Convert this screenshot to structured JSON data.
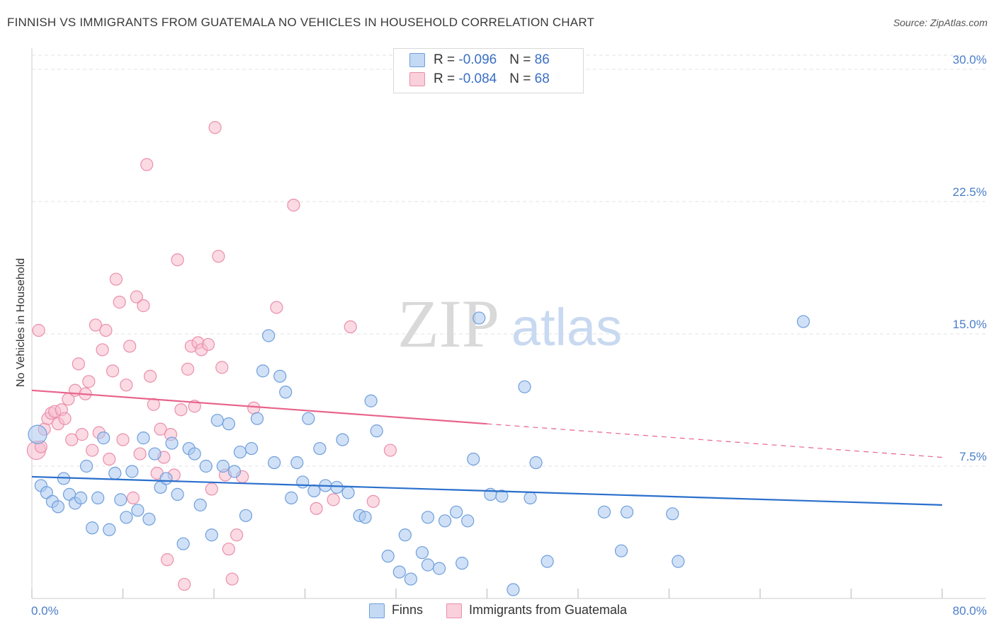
{
  "title": "FINNISH VS IMMIGRANTS FROM GUATEMALA NO VEHICLES IN HOUSEHOLD CORRELATION CHART",
  "source": "Source: ZipAtlas.com",
  "watermark": {
    "zip": "ZIP",
    "atlas": "atlas"
  },
  "colors": {
    "blue_fill": "#a9c8f0",
    "blue_stroke": "#6f9edb",
    "blue_line": "#2a6fcc",
    "pink_fill": "#f7bccd",
    "pink_stroke": "#ea8fab",
    "pink_line": "#e8638b",
    "grid": "#e3e3e3",
    "tick_text": "#4a7ec9"
  },
  "legend": {
    "rows": [
      {
        "r_label": "R = ",
        "r_value": "-0.096",
        "n_label": "N = ",
        "n_value": "86"
      },
      {
        "r_label": "R = ",
        "r_value": "-0.084",
        "n_label": "N = ",
        "n_value": "68"
      }
    ]
  },
  "chart_data": {
    "type": "scatter",
    "xlabel": "",
    "ylabel": "No Vehicles in Household",
    "xlim": [
      0,
      80
    ],
    "ylim": [
      0,
      30
    ],
    "x_tick_labels": [
      "0.0%",
      "80.0%"
    ],
    "y_ticks": [
      7.5,
      15.0,
      22.5,
      30.0
    ],
    "y_tick_labels": [
      "7.5%",
      "15.0%",
      "22.5%",
      "30.0%"
    ],
    "grid": true,
    "series": [
      {
        "name": "Finns",
        "trend": {
          "x": [
            0,
            80
          ],
          "y": [
            6.9,
            5.3
          ],
          "dashed_from": null
        },
        "points": [
          [
            0.5,
            9.3
          ],
          [
            0.8,
            6.4
          ],
          [
            1.3,
            6.0
          ],
          [
            1.8,
            5.5
          ],
          [
            2.3,
            5.2
          ],
          [
            2.8,
            6.8
          ],
          [
            3.3,
            5.9
          ],
          [
            3.8,
            5.4
          ],
          [
            4.3,
            5.7
          ],
          [
            4.8,
            7.5
          ],
          [
            5.3,
            4.0
          ],
          [
            5.8,
            5.7
          ],
          [
            6.3,
            9.1
          ],
          [
            6.8,
            3.9
          ],
          [
            7.3,
            7.1
          ],
          [
            7.8,
            5.6
          ],
          [
            8.3,
            4.6
          ],
          [
            8.8,
            7.2
          ],
          [
            9.3,
            5.0
          ],
          [
            9.8,
            9.1
          ],
          [
            10.3,
            4.5
          ],
          [
            10.8,
            8.2
          ],
          [
            11.3,
            6.3
          ],
          [
            11.8,
            6.8
          ],
          [
            12.3,
            8.8
          ],
          [
            12.8,
            5.9
          ],
          [
            13.3,
            3.1
          ],
          [
            13.8,
            8.5
          ],
          [
            14.3,
            8.2
          ],
          [
            14.8,
            5.3
          ],
          [
            15.3,
            7.5
          ],
          [
            15.8,
            3.6
          ],
          [
            16.3,
            10.1
          ],
          [
            16.8,
            7.5
          ],
          [
            17.3,
            9.9
          ],
          [
            17.8,
            7.2
          ],
          [
            18.3,
            8.3
          ],
          [
            18.8,
            4.7
          ],
          [
            19.3,
            8.5
          ],
          [
            19.8,
            10.2
          ],
          [
            20.3,
            12.9
          ],
          [
            20.8,
            14.9
          ],
          [
            21.3,
            7.7
          ],
          [
            21.8,
            12.6
          ],
          [
            22.3,
            11.7
          ],
          [
            22.8,
            5.7
          ],
          [
            23.3,
            7.7
          ],
          [
            23.8,
            6.6
          ],
          [
            24.3,
            10.2
          ],
          [
            24.8,
            6.1
          ],
          [
            25.3,
            8.5
          ],
          [
            25.8,
            6.4
          ],
          [
            26.8,
            6.3
          ],
          [
            27.3,
            9.0
          ],
          [
            27.8,
            6.0
          ],
          [
            28.8,
            4.7
          ],
          [
            29.3,
            4.6
          ],
          [
            29.8,
            11.2
          ],
          [
            30.3,
            9.5
          ],
          [
            31.3,
            2.4
          ],
          [
            32.3,
            1.5
          ],
          [
            32.8,
            3.6
          ],
          [
            33.3,
            1.1
          ],
          [
            34.3,
            2.6
          ],
          [
            34.8,
            1.9
          ],
          [
            34.8,
            4.6
          ],
          [
            35.8,
            1.7
          ],
          [
            36.3,
            4.4
          ],
          [
            37.3,
            4.9
          ],
          [
            37.8,
            2.0
          ],
          [
            38.3,
            4.4
          ],
          [
            38.8,
            7.9
          ],
          [
            39.3,
            15.9
          ],
          [
            40.3,
            5.9
          ],
          [
            41.3,
            5.8
          ],
          [
            42.3,
            0.5
          ],
          [
            43.3,
            12.0
          ],
          [
            43.8,
            5.7
          ],
          [
            44.3,
            7.7
          ],
          [
            45.3,
            2.1
          ],
          [
            50.3,
            4.9
          ],
          [
            51.8,
            2.7
          ],
          [
            52.3,
            4.9
          ],
          [
            56.3,
            4.8
          ],
          [
            56.8,
            2.1
          ],
          [
            67.8,
            15.7
          ]
        ]
      },
      {
        "name": "Immigrants from Guatemala",
        "trend": {
          "x": [
            0,
            80
          ],
          "y": [
            11.8,
            8.0
          ],
          "dashed_from": 40
        },
        "points": [
          [
            0.4,
            8.4
          ],
          [
            0.6,
            15.2
          ],
          [
            0.8,
            8.6
          ],
          [
            1.1,
            9.6
          ],
          [
            1.4,
            10.2
          ],
          [
            1.7,
            10.5
          ],
          [
            2.0,
            10.6
          ],
          [
            2.3,
            9.9
          ],
          [
            2.6,
            10.7
          ],
          [
            2.9,
            10.2
          ],
          [
            3.2,
            11.3
          ],
          [
            3.5,
            9.0
          ],
          [
            3.8,
            11.8
          ],
          [
            4.1,
            13.3
          ],
          [
            4.4,
            9.3
          ],
          [
            4.7,
            11.6
          ],
          [
            5.0,
            12.3
          ],
          [
            5.3,
            8.4
          ],
          [
            5.6,
            15.5
          ],
          [
            5.9,
            9.4
          ],
          [
            6.2,
            14.1
          ],
          [
            6.5,
            15.2
          ],
          [
            6.8,
            7.9
          ],
          [
            7.1,
            12.9
          ],
          [
            7.4,
            18.1
          ],
          [
            7.7,
            16.8
          ],
          [
            8.0,
            9.0
          ],
          [
            8.3,
            12.1
          ],
          [
            8.6,
            14.3
          ],
          [
            8.9,
            5.7
          ],
          [
            9.2,
            17.1
          ],
          [
            9.5,
            8.2
          ],
          [
            9.8,
            16.6
          ],
          [
            10.1,
            24.6
          ],
          [
            10.4,
            12.6
          ],
          [
            10.7,
            11.0
          ],
          [
            11.0,
            7.1
          ],
          [
            11.3,
            9.6
          ],
          [
            11.6,
            8.0
          ],
          [
            11.9,
            2.2
          ],
          [
            12.2,
            9.3
          ],
          [
            12.5,
            7.0
          ],
          [
            12.8,
            19.2
          ],
          [
            13.1,
            10.7
          ],
          [
            13.4,
            0.8
          ],
          [
            13.7,
            13.0
          ],
          [
            14.0,
            14.3
          ],
          [
            14.3,
            10.9
          ],
          [
            14.6,
            14.5
          ],
          [
            14.9,
            14.1
          ],
          [
            15.5,
            14.4
          ],
          [
            15.8,
            6.2
          ],
          [
            16.1,
            26.7
          ],
          [
            16.4,
            19.4
          ],
          [
            16.7,
            13.1
          ],
          [
            17.0,
            7.0
          ],
          [
            17.3,
            2.8
          ],
          [
            17.6,
            1.1
          ],
          [
            18.0,
            3.6
          ],
          [
            18.5,
            6.9
          ],
          [
            19.5,
            10.8
          ],
          [
            21.5,
            16.5
          ],
          [
            23.0,
            22.3
          ],
          [
            25.0,
            5.1
          ],
          [
            26.5,
            5.6
          ],
          [
            28.0,
            15.4
          ],
          [
            30.0,
            5.5
          ],
          [
            31.5,
            8.4
          ]
        ]
      }
    ]
  },
  "bottom_legend": [
    {
      "label": "Finns"
    },
    {
      "label": "Immigrants from Guatemala"
    }
  ]
}
